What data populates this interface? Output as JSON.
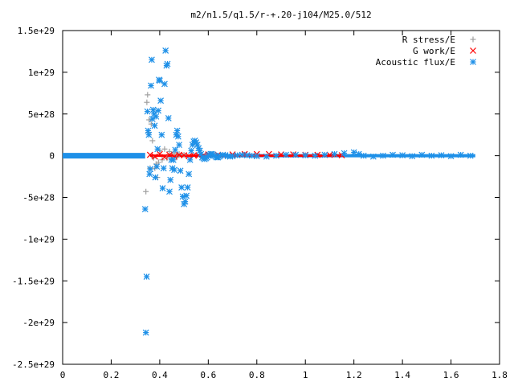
{
  "chart_data": {
    "type": "scatter",
    "title": "m2/n1.5/q1.5/r-+.20-j104/M25.0/512",
    "xlabel": "",
    "ylabel": "",
    "xlim": [
      0,
      1.8
    ],
    "ylim": [
      -2.5e+29,
      1.5e+29
    ],
    "x_ticks": [
      0,
      0.2,
      0.4,
      0.6,
      0.8,
      1,
      1.2,
      1.4,
      1.6,
      1.8
    ],
    "x_tick_labels": [
      "0",
      "0.2",
      "0.4",
      "0.6",
      "0.8",
      "1",
      "1.2",
      "1.4",
      "1.6",
      "1.8"
    ],
    "y_ticks": [
      1.5e+29,
      1e+29,
      5e+28,
      0,
      -5e+28,
      -1e+29,
      -1.5e+29,
      -2e+29,
      -2.5e+29
    ],
    "y_tick_labels": [
      "1.5e+29",
      "1e+29",
      "5e+28",
      "0",
      "-5e+28",
      "-1e+29",
      "-1.5e+29",
      "-2e+29",
      "-2.5e+29"
    ],
    "grid": false,
    "legend_position": "top-right",
    "series": [
      {
        "name": "R stress/E",
        "marker": "plus",
        "color": "#a0a0a0",
        "x": [
          0.343,
          0.347,
          0.35,
          0.353,
          0.356,
          0.36,
          0.365,
          0.37,
          0.375,
          0.38,
          0.385,
          0.39,
          0.395,
          0.4,
          0.41,
          0.42,
          0.43,
          0.44,
          0.45,
          0.46,
          0.47,
          0.48,
          0.5
        ],
        "y": [
          -4.3e+28,
          6.4e+28,
          7.3e+28,
          2.8e+28,
          4.3e+28,
          -1.5e+28,
          3.8e+28,
          1.8e+28,
          -2.5e+27,
          -1.5e+28,
          -1e+28,
          -2.6e+28,
          -8e+27,
          6e+27,
          -5e+27,
          8e+27,
          -3e+27,
          5e+27,
          -4e+27,
          3e+27,
          -2e+27,
          2e+27,
          1e+27
        ]
      },
      {
        "name": "G work/E",
        "marker": "x",
        "color": "#ff0000",
        "x": [
          0.36,
          0.38,
          0.4,
          0.42,
          0.44,
          0.46,
          0.48,
          0.5,
          0.52,
          0.54,
          0.56,
          0.58,
          0.6,
          0.62,
          0.64,
          0.66,
          0.7,
          0.75,
          0.8,
          0.85,
          0.9,
          0.95,
          1.0,
          1.05,
          1.1,
          1.15
        ],
        "y": [
          1e+27,
          -1e+27,
          2e+27,
          -1.5e+27,
          1e+27,
          -1e+27,
          1e+27,
          5e+26,
          -5e+26,
          5e+26,
          0,
          5e+26,
          1.5e+27,
          1e+27,
          1e+27,
          5e+26,
          1.5e+27,
          2e+27,
          2e+27,
          2e+27,
          1.5e+27,
          1.5e+27,
          1e+27,
          1e+27,
          1e+27,
          5e+26
        ]
      },
      {
        "name": "Acoustic flux/E",
        "marker": "star",
        "color": "#1e90e8",
        "x": [
          0.34,
          0.343,
          0.346,
          0.349,
          0.352,
          0.355,
          0.358,
          0.361,
          0.364,
          0.367,
          0.37,
          0.373,
          0.376,
          0.379,
          0.382,
          0.385,
          0.388,
          0.391,
          0.394,
          0.397,
          0.4,
          0.404,
          0.408,
          0.412,
          0.416,
          0.42,
          0.424,
          0.428,
          0.432,
          0.436,
          0.44,
          0.444,
          0.448,
          0.452,
          0.456,
          0.46,
          0.464,
          0.468,
          0.472,
          0.476,
          0.48,
          0.485,
          0.49,
          0.495,
          0.5,
          0.505,
          0.51,
          0.515,
          0.52,
          0.525,
          0.53,
          0.535,
          0.54,
          0.545,
          0.55,
          0.555,
          0.56,
          0.565,
          0.57,
          0.575,
          0.58,
          0.585,
          0.59,
          0.595,
          0.6,
          0.605,
          0.61,
          0.615,
          0.62,
          0.625,
          0.63,
          0.635,
          0.64,
          0.645,
          0.65,
          0.66,
          0.67,
          0.68,
          0.69,
          0.7,
          0.72,
          0.74,
          0.76,
          0.78,
          0.8,
          0.84,
          0.88,
          0.92,
          0.96,
          1.0,
          1.04,
          1.08,
          1.12,
          1.16,
          1.2,
          1.22,
          1.24,
          1.28,
          1.32,
          1.36,
          1.4,
          1.44,
          1.48,
          1.52,
          1.56,
          1.6,
          1.64,
          1.68
        ],
        "y": [
          -6.4e+28,
          -2.12e+29,
          -1.45e+29,
          5.3e+28,
          3e+28,
          2.5e+28,
          -2.2e+28,
          -1.6e+28,
          8.4e+28,
          1.15e+29,
          4.4e+28,
          5.5e+28,
          5e+28,
          3.6e+28,
          -2.6e+28,
          4.7e+28,
          -1.3e+28,
          8e+27,
          5.4e+28,
          9.1e+28,
          9e+28,
          6.6e+28,
          2.5e+28,
          -3.9e+28,
          -1.5e+28,
          8.6e+28,
          1.26e+29,
          1.08e+29,
          1.1e+29,
          4.5e+28,
          -4.3e+28,
          -2.9e+28,
          -5e+27,
          -1.5e+28,
          -5e+27,
          -1.7e+28,
          7e+27,
          2.5e+28,
          3e+28,
          2.3e+28,
          1.3e+28,
          -1.8e+28,
          -3.8e+28,
          -4.9e+28,
          -5.8e+28,
          -5.5e+28,
          -4.8e+28,
          -3.8e+28,
          -2.2e+28,
          -5e+27,
          6e+27,
          1.3e+28,
          1.7e+28,
          1.8e+28,
          1.6e+28,
          1.3e+28,
          9e+27,
          6e+27,
          2e+27,
          -2e+27,
          -3e+27,
          -4e+27,
          -3e+27,
          -2e+27,
          0,
          1e+27,
          2e+27,
          2e+27,
          1e+27,
          0,
          -1e+27,
          -2e+27,
          -2e+27,
          -1e+27,
          0,
          1e+27,
          5e+26,
          -5e+26,
          -1e+27,
          -5e+26,
          5e+26,
          1e+27,
          5e+26,
          0,
          -5e+26,
          -1e+27,
          0,
          1e+27,
          1e+27,
          5e+26,
          0,
          1e+27,
          2e+27,
          3e+27,
          4e+27,
          2e+27,
          0,
          -1e+27,
          0,
          1e+27,
          5e+26,
          -5e+26,
          1e+27,
          0,
          5e+26,
          -5e+26,
          1e+27,
          0
        ]
      }
    ]
  }
}
